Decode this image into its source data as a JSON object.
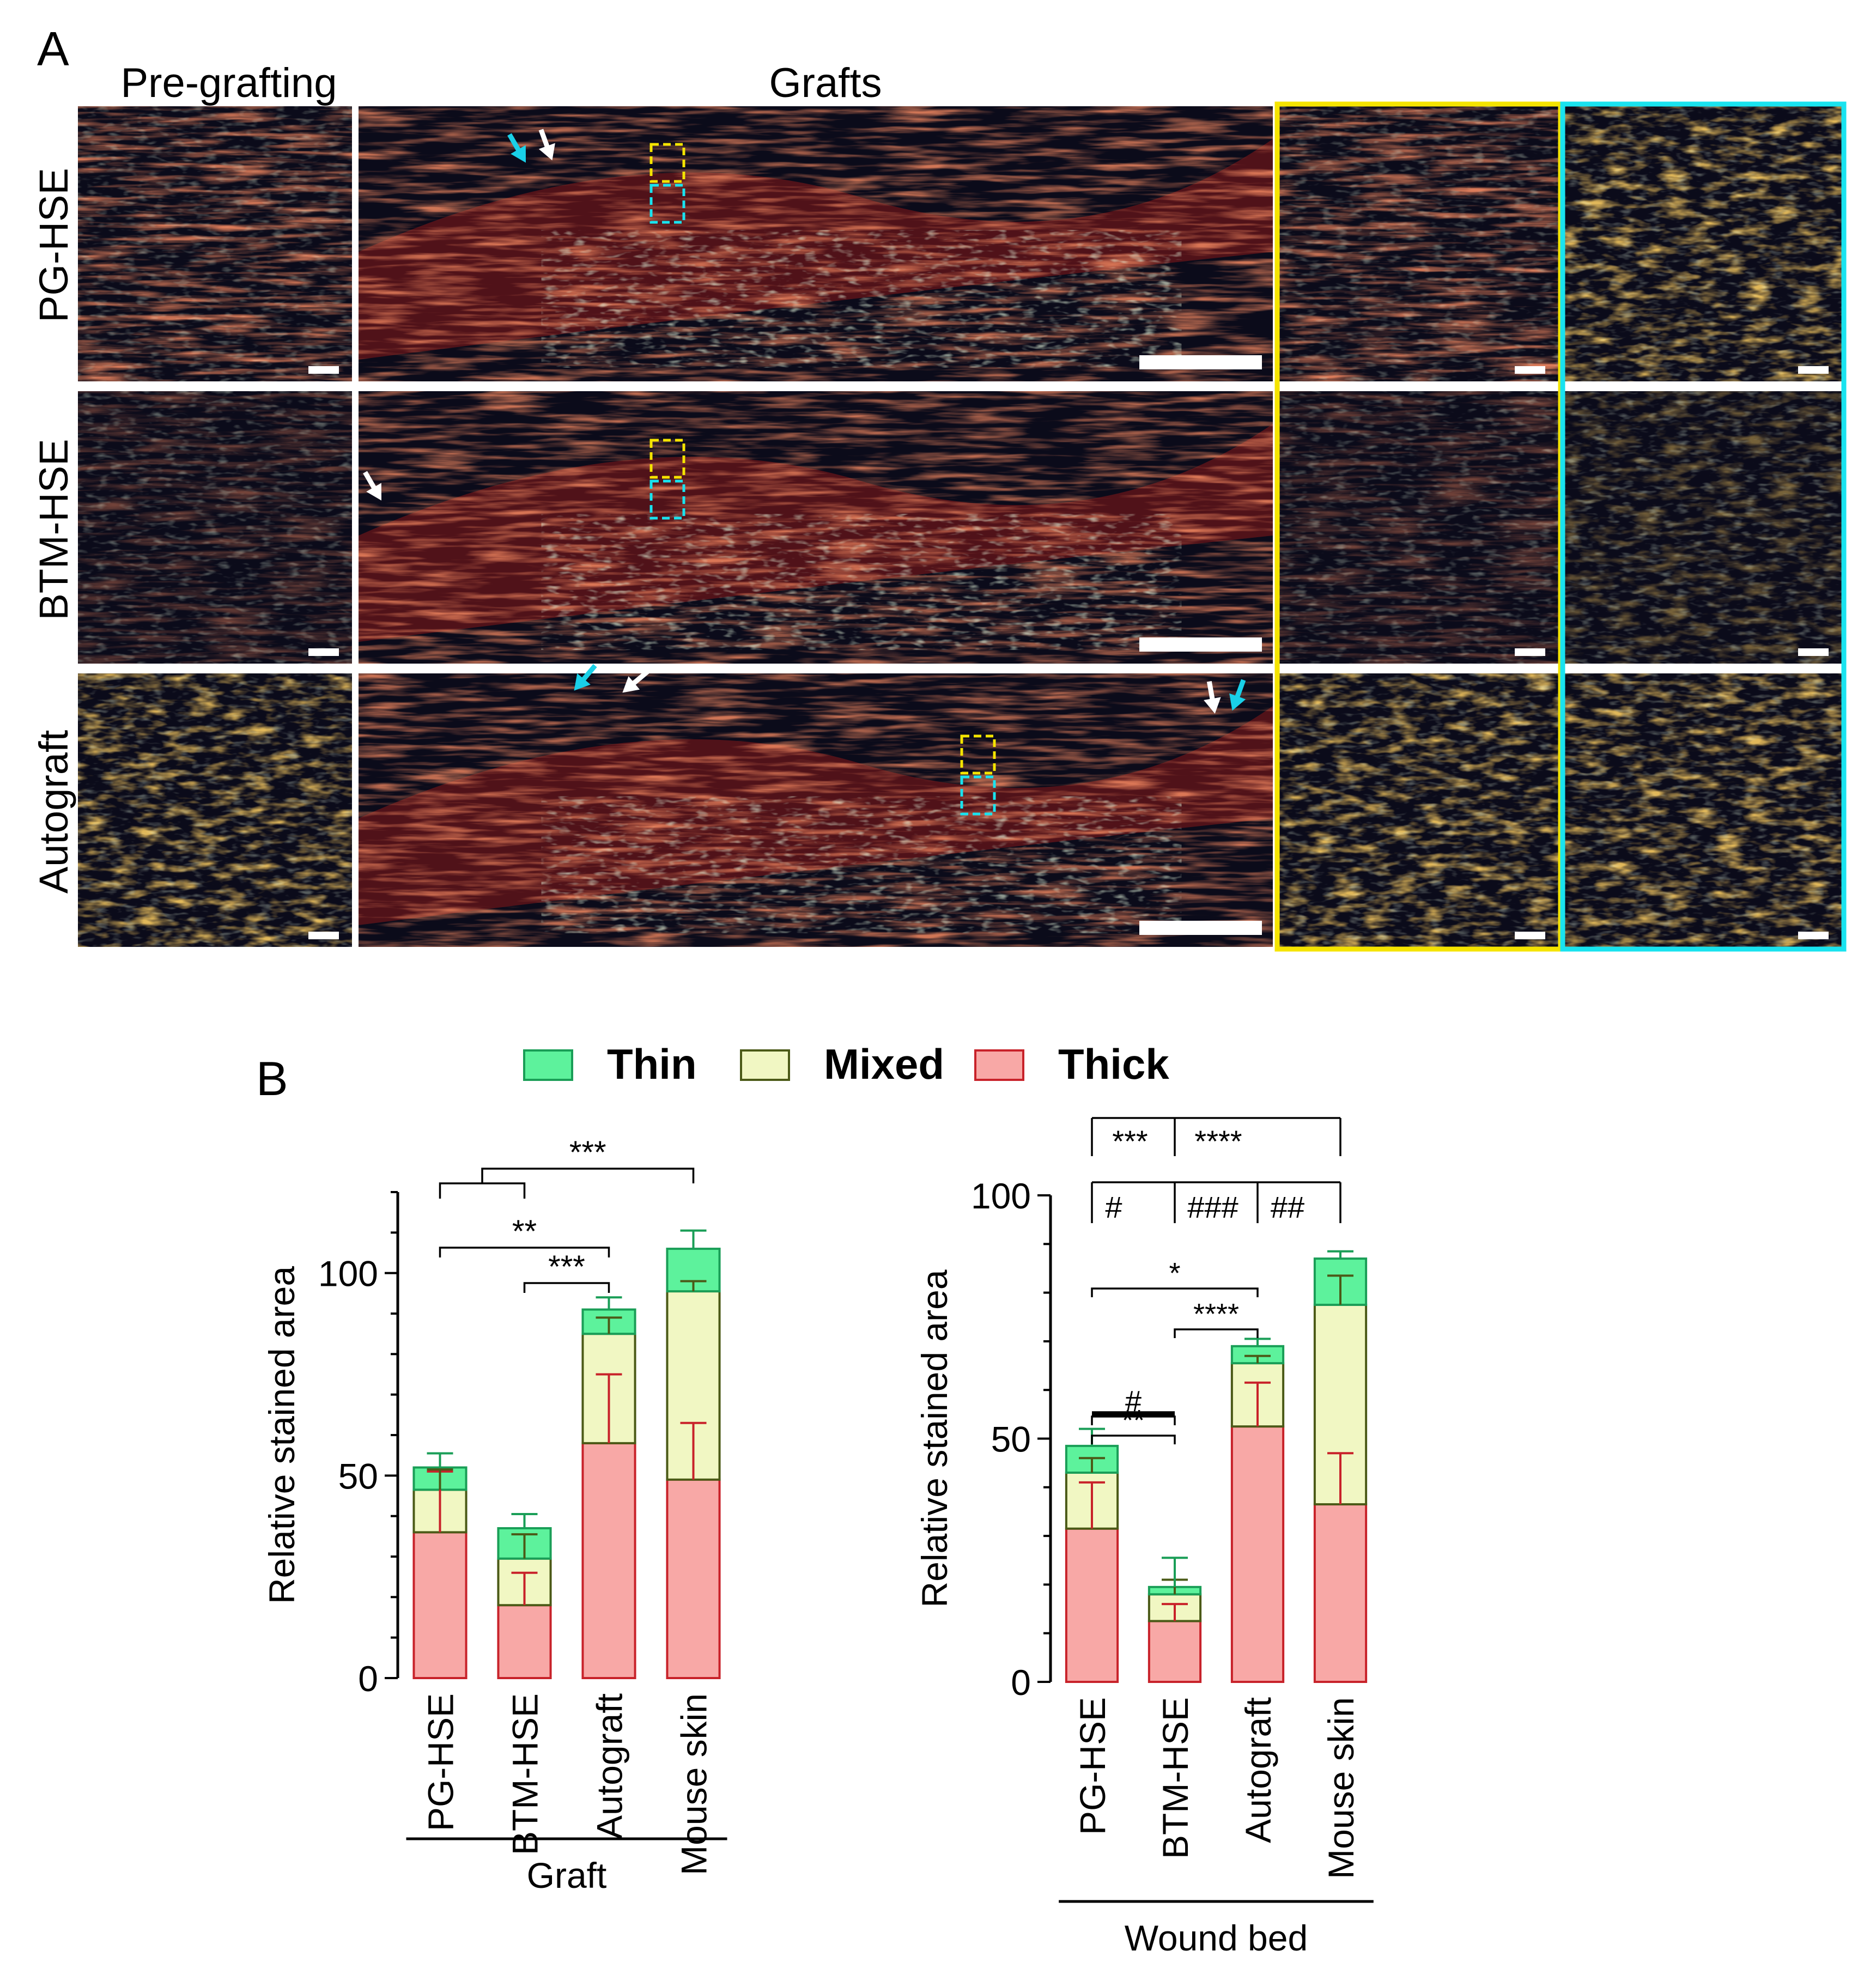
{
  "panel_a": {
    "letter": "A",
    "col_headers": [
      "Pre-grafting",
      "Grafts"
    ],
    "row_labels": [
      "PG-HSE",
      "BTM-HSE",
      "Autograft"
    ],
    "zoom_frame_colors": {
      "left": "#f5e400",
      "right": "#19e3ef"
    },
    "arrow_colors": {
      "white": "#ffffff",
      "cyan": "#19d0e8"
    },
    "stain_palette": {
      "background": "#0b0b1a",
      "red": "#e0242c",
      "orange": "#e7a020",
      "green_white": "#d8f0c8"
    }
  },
  "panel_b": {
    "letter": "B",
    "legend": [
      {
        "label": "Thin",
        "fill": "#5df29c",
        "stroke": "#1a9e57"
      },
      {
        "label": "Mixed",
        "fill": "#f1f7c3",
        "stroke": "#4b5a17"
      },
      {
        "label": "Thick",
        "fill": "#f8a8a6",
        "stroke": "#c8222a"
      }
    ]
  },
  "chart_data": [
    {
      "type": "bar",
      "stacked": true,
      "group_label": "Graft",
      "ylabel": "Relative stained area",
      "ylim": [
        0,
        120
      ],
      "yticks": [
        0,
        50,
        100
      ],
      "categories": [
        "PG-HSE",
        "BTM-HSE",
        "Autograft",
        "Mouse skin"
      ],
      "series": [
        {
          "name": "Thick",
          "values": [
            36,
            18,
            58,
            49
          ],
          "errors": [
            15,
            8,
            17,
            14
          ],
          "color": "#f8a8a6",
          "stroke": "#c8222a"
        },
        {
          "name": "Mixed",
          "values": [
            10.5,
            11.5,
            27,
            46.5
          ],
          "errors": [
            5,
            6,
            4,
            2.5
          ],
          "color": "#f1f7c3",
          "stroke": "#4b5a17"
        },
        {
          "name": "Thin",
          "values": [
            5.5,
            7.5,
            6,
            10.5
          ],
          "errors": [
            3.5,
            3.5,
            3,
            4.5
          ],
          "color": "#5df29c",
          "stroke": "#1a9e57"
        }
      ],
      "significance": [
        {
          "from": [
            0,
            1
          ],
          "to": 3,
          "label": "***"
        },
        {
          "from": 0,
          "to": 2,
          "label": "**"
        },
        {
          "from": 1,
          "to": 2,
          "label": "***"
        }
      ]
    },
    {
      "type": "bar",
      "stacked": true,
      "group_label": "Wound bed",
      "ylabel": "Relative stained area",
      "ylim": [
        0,
        100
      ],
      "yticks": [
        0,
        50,
        100
      ],
      "categories": [
        "PG-HSE",
        "BTM-HSE",
        "Autograft",
        "Mouse skin"
      ],
      "series": [
        {
          "name": "Thick",
          "values": [
            31.5,
            12.5,
            52.5,
            36.5
          ],
          "errors": [
            9.5,
            3.5,
            9,
            10.5
          ],
          "color": "#f8a8a6",
          "stroke": "#c8222a"
        },
        {
          "name": "Mixed",
          "values": [
            11.5,
            5.5,
            13,
            41
          ],
          "errors": [
            3,
            3,
            1.5,
            6
          ],
          "color": "#f1f7c3",
          "stroke": "#4b5a17"
        },
        {
          "name": "Thin",
          "values": [
            5.5,
            1.5,
            3.5,
            9.5
          ],
          "errors": [
            3.5,
            6,
            1.5,
            1.5
          ],
          "color": "#5df29c",
          "stroke": "#1a9e57"
        }
      ],
      "significance": [
        {
          "from": 0,
          "to": 1,
          "label": "**"
        },
        {
          "from": 0,
          "to": 1,
          "label": "#"
        },
        {
          "from": 1,
          "to": 2,
          "label": "****"
        },
        {
          "from": 0,
          "to": 2,
          "label": "*"
        }
      ],
      "header_brackets": [
        {
          "label": "***",
          "span": [
            0,
            1
          ]
        },
        {
          "label": "****",
          "span": [
            1,
            3
          ]
        },
        {
          "label": "#",
          "span": [
            0,
            1
          ]
        },
        {
          "label": "###",
          "span": [
            1,
            2
          ]
        },
        {
          "label": "##",
          "span": [
            2,
            3
          ]
        }
      ]
    }
  ]
}
